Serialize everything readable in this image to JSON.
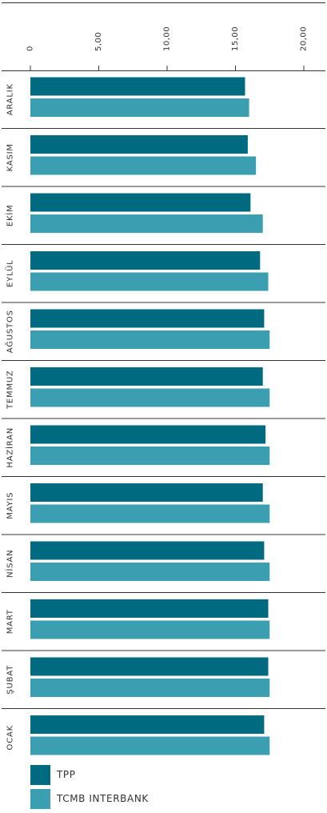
{
  "chart_data": {
    "type": "bar",
    "orientation": "horizontal",
    "categories": [
      "ARALIK",
      "KASIM",
      "EKİM",
      "EYLÜL",
      "AĞUSTOS",
      "TEMMUZ",
      "HAZİRAN",
      "MAYIS",
      "NİSAN",
      "MART",
      "ŞUBAT",
      "OCAK"
    ],
    "series": [
      {
        "name": "TPP",
        "color": "#006a80",
        "values": [
          15.7,
          15.9,
          16.1,
          16.8,
          17.1,
          17.0,
          17.2,
          17.0,
          17.1,
          17.4,
          17.4,
          17.1
        ]
      },
      {
        "name": "TCMB INTERBANK",
        "color": "#3c9fb1",
        "values": [
          16.0,
          16.5,
          17.0,
          17.4,
          17.5,
          17.5,
          17.5,
          17.5,
          17.5,
          17.5,
          17.5,
          17.5
        ]
      }
    ],
    "x_ticks": [
      "0",
      "5,00",
      "10,00",
      "15,00",
      "20,00"
    ],
    "x_tick_values": [
      0,
      5,
      10,
      15,
      20
    ],
    "xlim": [
      0,
      20
    ],
    "grid": false,
    "legend_position": "bottom-left",
    "title": "",
    "xlabel": "",
    "ylabel": ""
  }
}
